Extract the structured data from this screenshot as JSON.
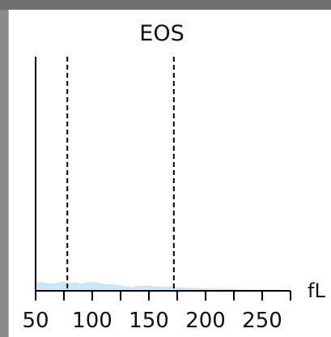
{
  "chart_data": {
    "type": "area",
    "title": "EOS",
    "xlabel": "fL",
    "ylabel": "",
    "xlim": [
      50,
      275
    ],
    "ylim": [
      0,
      100
    ],
    "xticks": [
      50,
      75,
      100,
      125,
      150,
      175,
      200,
      225,
      250,
      275
    ],
    "xtick_labels": [
      {
        "value": 50,
        "label": "50"
      },
      {
        "value": 100,
        "label": "100"
      },
      {
        "value": 150,
        "label": "150"
      },
      {
        "value": 200,
        "label": "200"
      },
      {
        "value": 250,
        "label": "250"
      }
    ],
    "thresholds": [
      78,
      172
    ],
    "grid": false,
    "series": [
      {
        "color": "#cfe6f6",
        "x": [
          50,
          55,
          60,
          65,
          70,
          75,
          80,
          85,
          90,
          95,
          100,
          105,
          110,
          115,
          120,
          125,
          130,
          135,
          140,
          145,
          150,
          155,
          160,
          165,
          170,
          175,
          180,
          185,
          190,
          195,
          200,
          205,
          210,
          215,
          220,
          225,
          230,
          235,
          240,
          245,
          250,
          255,
          260,
          265,
          270,
          275
        ],
        "y": [
          3.5,
          3.8,
          3.4,
          3.0,
          3.6,
          4.0,
          3.3,
          3.8,
          3.1,
          3.6,
          3.9,
          3.5,
          3.0,
          2.6,
          2.9,
          2.4,
          2.0,
          1.6,
          2.3,
          2.0,
          2.4,
          1.9,
          1.8,
          1.6,
          1.9,
          1.5,
          1.4,
          1.3,
          1.2,
          1.1,
          1.0,
          1.0,
          0.9,
          0.9,
          0.8,
          0.8,
          0.7,
          0.7,
          0.6,
          0.6,
          0.5,
          0.5,
          0.4,
          0.4,
          0.3,
          0.3
        ]
      }
    ]
  }
}
